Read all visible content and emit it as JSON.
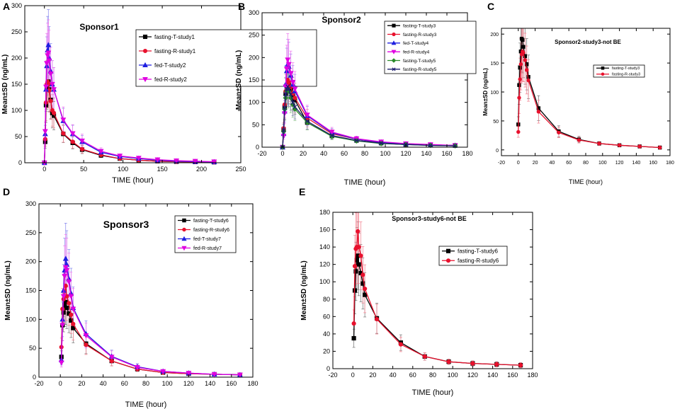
{
  "chart_data": [
    {
      "type": "line",
      "panel_letter": "A",
      "title": "Sponsor1",
      "xlabel": "TIME (hour)",
      "ylabel": "Mean±SD (ng/mL)",
      "xlim": [
        -25,
        250
      ],
      "ylim": [
        0,
        300
      ],
      "xticks": [
        0,
        50,
        100,
        150,
        200,
        250
      ],
      "yticks": [
        0,
        50,
        100,
        150,
        200,
        250,
        300
      ],
      "legend_position": "top-right",
      "x": [
        0,
        1,
        2,
        3,
        4,
        5,
        6,
        8,
        10,
        12,
        24,
        36,
        48,
        72,
        96,
        120,
        144,
        168,
        192,
        216
      ],
      "series": [
        {
          "name": "fasting-T-study1",
          "color": "#000000",
          "marker": "square",
          "values": [
            0,
            40,
            110,
            145,
            150,
            155,
            140,
            120,
            95,
            90,
            55,
            38,
            25,
            14,
            8,
            5,
            3,
            2,
            1.5,
            1
          ]
        },
        {
          "name": "fasting-R-study1",
          "color": "#e8112d",
          "marker": "circle",
          "values": [
            0,
            45,
            115,
            150,
            155,
            150,
            138,
            118,
            100,
            95,
            56,
            40,
            26,
            15,
            8,
            5,
            3,
            2,
            1.5,
            1
          ]
        },
        {
          "name": "fed-T-study2",
          "color": "#1f1fe0",
          "marker": "triangle-up",
          "values": [
            0,
            55,
            140,
            185,
            215,
            225,
            200,
            175,
            150,
            140,
            80,
            55,
            40,
            20,
            12,
            8,
            5,
            3,
            2,
            1.5
          ]
        },
        {
          "name": "fed-R-study2",
          "color": "#e000e0",
          "marker": "triangle-down",
          "values": [
            0,
            60,
            145,
            190,
            205,
            210,
            195,
            170,
            150,
            140,
            82,
            56,
            42,
            22,
            13,
            9,
            6,
            4,
            3,
            2
          ]
        }
      ]
    },
    {
      "type": "line",
      "panel_letter": "B",
      "title": "Sponsor2",
      "xlabel": "TIME (hour)",
      "ylabel": "Mean±SD (ng/mL)",
      "xlim": [
        -20,
        180
      ],
      "ylim": [
        0,
        300
      ],
      "xticks": [
        -20,
        0,
        20,
        40,
        60,
        80,
        100,
        120,
        140,
        160,
        180
      ],
      "yticks": [
        0,
        50,
        100,
        150,
        200,
        250,
        300
      ],
      "legend_position": "top-right",
      "x": [
        0,
        1,
        2,
        3,
        4,
        5,
        6,
        8,
        10,
        12,
        24,
        48,
        72,
        96,
        120,
        144,
        168
      ],
      "series": [
        {
          "name": "fasting-T-study3",
          "color": "#000000",
          "marker": "square",
          "values": [
            0,
            40,
            90,
            120,
            135,
            140,
            138,
            130,
            115,
            105,
            55,
            25,
            15,
            9,
            6,
            5,
            4
          ]
        },
        {
          "name": "fasting-R-study3",
          "color": "#e8112d",
          "marker": "circle",
          "values": [
            0,
            42,
            95,
            125,
            140,
            150,
            145,
            135,
            120,
            110,
            65,
            30,
            18,
            10,
            7,
            5,
            4
          ]
        },
        {
          "name": "fed-T-study4",
          "color": "#1f1fe0",
          "marker": "triangle-up",
          "values": [
            0,
            30,
            80,
            140,
            170,
            185,
            180,
            160,
            140,
            125,
            70,
            32,
            18,
            11,
            7,
            5,
            4
          ]
        },
        {
          "name": "fed-R-study4",
          "color": "#e000e0",
          "marker": "triangle-down",
          "values": [
            0,
            25,
            75,
            135,
            175,
            195,
            185,
            165,
            145,
            130,
            72,
            34,
            19,
            12,
            8,
            6,
            4
          ]
        },
        {
          "name": "fasting-T-study5",
          "color": "#2a8a2a",
          "marker": "diamond",
          "values": [
            0,
            35,
            85,
            110,
            125,
            130,
            125,
            110,
            95,
            85,
            55,
            24,
            14,
            8,
            6,
            4,
            3
          ]
        },
        {
          "name": "fasting-R-study5",
          "color": "#1c1c6e",
          "marker": "cross",
          "values": [
            0,
            38,
            88,
            118,
            130,
            135,
            130,
            118,
            100,
            90,
            58,
            26,
            15,
            9,
            6,
            4,
            3
          ]
        }
      ]
    },
    {
      "type": "line",
      "panel_letter": "C",
      "title": "Sponsor2-study3-not BE",
      "xlabel": "TIME (hour)",
      "ylabel": "Mean±SD (ng/mL)",
      "xlim": [
        -20,
        180
      ],
      "ylim": [
        -10,
        210
      ],
      "xticks": [
        -20,
        0,
        20,
        40,
        60,
        80,
        100,
        120,
        140,
        160,
        180
      ],
      "yticks": [
        0,
        50,
        100,
        150,
        200
      ],
      "legend_position": "center",
      "x": [
        0,
        1,
        2,
        3,
        4,
        5,
        6,
        8,
        10,
        12,
        24,
        48,
        72,
        96,
        120,
        144,
        168
      ],
      "series": [
        {
          "name": "fasting-T-study3",
          "color": "#000000",
          "marker": "square",
          "values": [
            44,
            112,
            142,
            170,
            192,
            190,
            178,
            162,
            148,
            126,
            72,
            32,
            18,
            11,
            8,
            6,
            4
          ]
        },
        {
          "name": "fasting-R-study3",
          "color": "#e8112d",
          "marker": "circle",
          "values": [
            31,
            90,
            122,
            148,
            165,
            170,
            168,
            155,
            138,
            120,
            66,
            30,
            17,
            11,
            8,
            6,
            4
          ]
        }
      ]
    },
    {
      "type": "line",
      "panel_letter": "D",
      "title": "Sponsor3",
      "xlabel": "TIME (hour)",
      "ylabel": "Mean±SD (ng/mL)",
      "xlim": [
        -20,
        180
      ],
      "ylim": [
        0,
        300
      ],
      "xticks": [
        -20,
        0,
        20,
        40,
        60,
        80,
        100,
        120,
        140,
        160,
        180
      ],
      "yticks": [
        0,
        50,
        100,
        150,
        200,
        250,
        300
      ],
      "legend_position": "top-right",
      "x": [
        1,
        2,
        3,
        4,
        5,
        6,
        8,
        10,
        12,
        24,
        48,
        72,
        96,
        120,
        144,
        168
      ],
      "series": [
        {
          "name": "fasting-T-study6",
          "color": "#000000",
          "marker": "square",
          "values": [
            35,
            90,
            112,
            125,
            130,
            120,
            110,
            98,
            85,
            58,
            28,
            14,
            8,
            6,
            5,
            4
          ]
        },
        {
          "name": "fasting-R-study6",
          "color": "#e8112d",
          "marker": "circle",
          "values": [
            52,
            118,
            135,
            140,
            158,
            140,
            128,
            108,
            92,
            56,
            28,
            14,
            8,
            6,
            5,
            4
          ]
        },
        {
          "name": "fed-T-study7",
          "color": "#1f1fe0",
          "marker": "triangle-up",
          "values": [
            30,
            100,
            150,
            185,
            205,
            195,
            170,
            145,
            120,
            75,
            36,
            18,
            10,
            7,
            5,
            4
          ]
        },
        {
          "name": "fed-R-study7",
          "color": "#e000e0",
          "marker": "triangle-down",
          "values": [
            25,
            90,
            140,
            175,
            190,
            185,
            165,
            140,
            118,
            72,
            35,
            17,
            10,
            7,
            5,
            4
          ]
        }
      ]
    },
    {
      "type": "line",
      "panel_letter": "E",
      "title": "Sponsor3-study6-not BE",
      "xlabel": "TIME (hour)",
      "ylabel": "Mean±SD (ng/mL)",
      "xlim": [
        -20,
        180
      ],
      "ylim": [
        0,
        180
      ],
      "xticks": [
        -20,
        0,
        20,
        40,
        60,
        80,
        100,
        120,
        140,
        160,
        180
      ],
      "yticks": [
        0,
        20,
        40,
        60,
        80,
        100,
        120,
        140,
        160,
        180
      ],
      "legend_position": "top-right",
      "x": [
        1,
        2,
        3,
        4,
        5,
        6,
        8,
        10,
        12,
        24,
        48,
        72,
        96,
        120,
        144,
        168
      ],
      "series": [
        {
          "name": "fasting-T-study6",
          "color": "#000000",
          "marker": "square",
          "values": [
            35,
            90,
            112,
            125,
            130,
            120,
            110,
            98,
            85,
            58,
            30,
            14,
            8,
            6,
            5,
            4
          ]
        },
        {
          "name": "fasting-R-study6",
          "color": "#e8112d",
          "marker": "circle",
          "values": [
            52,
            118,
            138,
            140,
            158,
            140,
            130,
            108,
            92,
            57,
            28,
            14,
            8,
            6,
            5,
            4
          ]
        }
      ]
    }
  ]
}
